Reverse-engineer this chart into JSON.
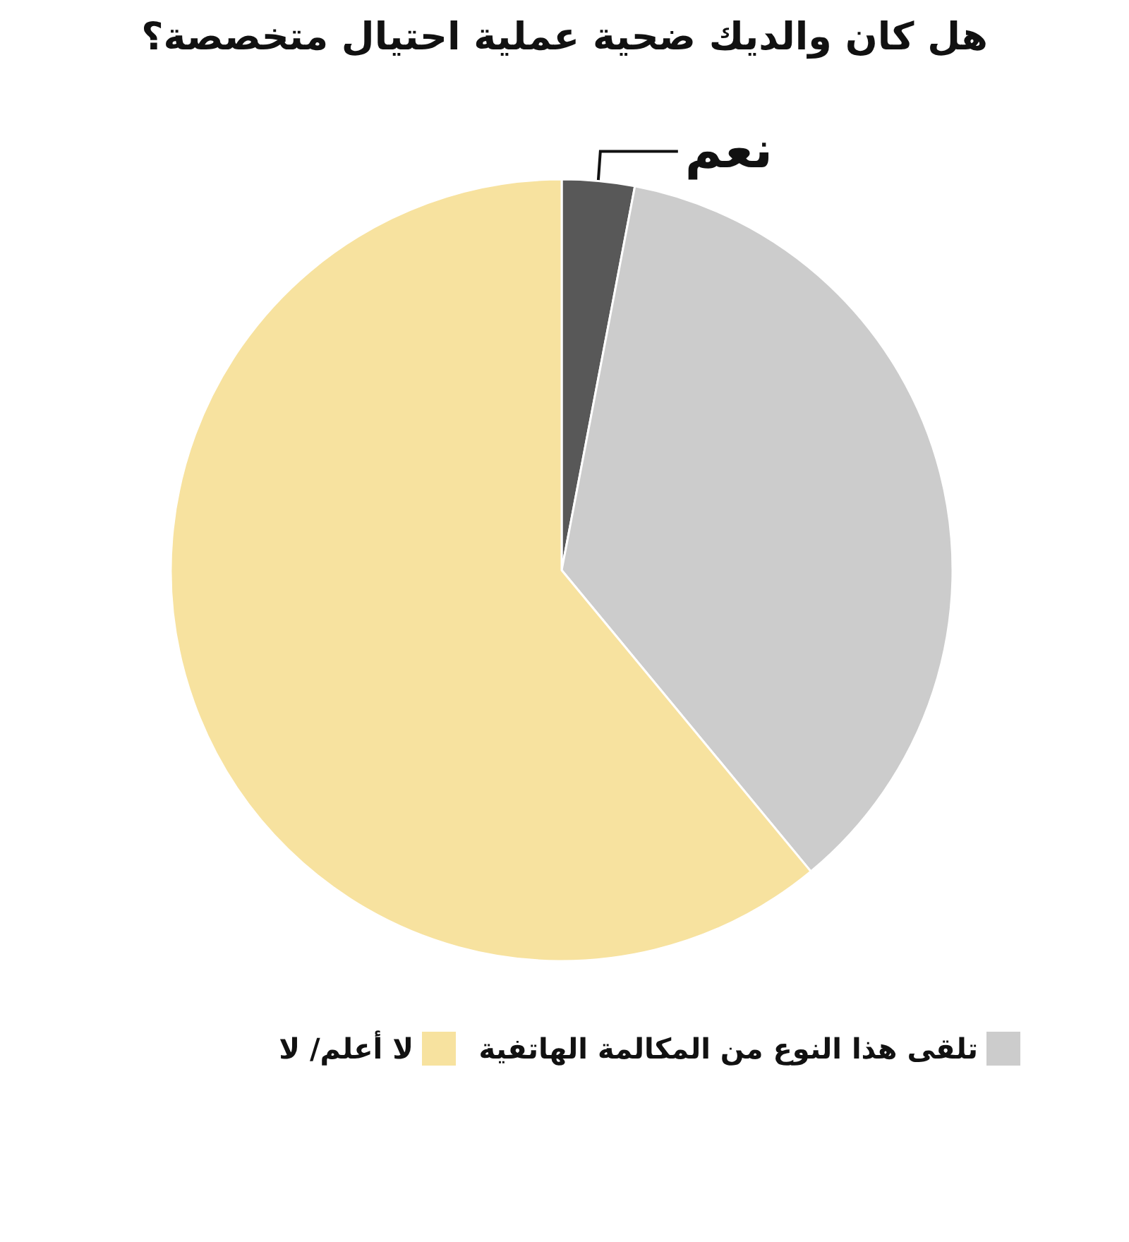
{
  "chart_data": {
    "type": "pie",
    "title": "هل كان والديك ضحية عملية احتيال متخصصة؟",
    "categories": [
      "نعم",
      "تلقى هذا النوع من المكالمة الهاتفية",
      "لا أعلم/ لا"
    ],
    "values": [
      3,
      36,
      61
    ],
    "colors": [
      "#585858",
      "#cccccc",
      "#f7e29f"
    ],
    "legend": "bottom"
  }
}
